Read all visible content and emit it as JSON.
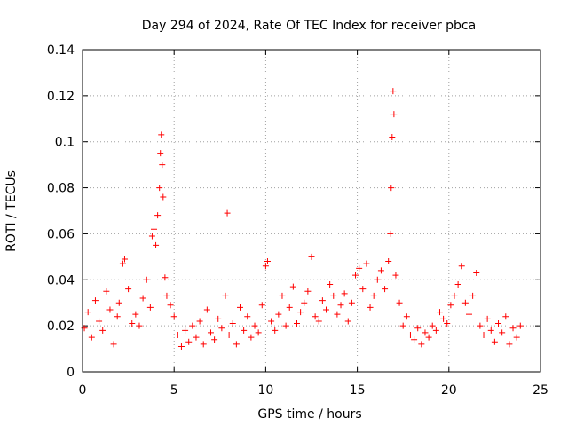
{
  "chart_data": {
    "type": "scatter",
    "title": "Day 294 of 2024, Rate Of TEC Index for receiver pbca",
    "xlabel": "GPS time / hours",
    "ylabel": "ROTI / TECUs",
    "xlim": [
      0,
      25
    ],
    "ylim": [
      0,
      0.14
    ],
    "x_ticks": [
      0,
      5,
      10,
      15,
      20,
      25
    ],
    "x_tick_labels": [
      "0",
      "5",
      "10",
      "15",
      "20",
      "25"
    ],
    "y_ticks": [
      0,
      0.02,
      0.04,
      0.06,
      0.08,
      0.1,
      0.12,
      0.14
    ],
    "y_tick_labels": [
      "0",
      "0.02",
      "0.04",
      "0.06",
      "0.08",
      "0.1",
      "0.12",
      "0.14"
    ],
    "grid": true,
    "marker": "+",
    "marker_color": "#ff0000",
    "series": [
      {
        "name": "ROTI",
        "points": [
          [
            0.1,
            0.019
          ],
          [
            0.3,
            0.026
          ],
          [
            0.5,
            0.015
          ],
          [
            0.7,
            0.031
          ],
          [
            0.9,
            0.022
          ],
          [
            1.1,
            0.018
          ],
          [
            1.3,
            0.035
          ],
          [
            1.5,
            0.027
          ],
          [
            1.7,
            0.012
          ],
          [
            1.9,
            0.024
          ],
          [
            2.0,
            0.03
          ],
          [
            2.2,
            0.047
          ],
          [
            2.3,
            0.049
          ],
          [
            2.5,
            0.036
          ],
          [
            2.7,
            0.021
          ],
          [
            2.9,
            0.025
          ],
          [
            3.1,
            0.02
          ],
          [
            3.3,
            0.032
          ],
          [
            3.5,
            0.04
          ],
          [
            3.7,
            0.028
          ],
          [
            3.8,
            0.059
          ],
          [
            3.9,
            0.062
          ],
          [
            4.0,
            0.055
          ],
          [
            4.1,
            0.068
          ],
          [
            4.2,
            0.08
          ],
          [
            4.25,
            0.095
          ],
          [
            4.3,
            0.103
          ],
          [
            4.35,
            0.09
          ],
          [
            4.4,
            0.076
          ],
          [
            4.5,
            0.041
          ],
          [
            4.6,
            0.033
          ],
          [
            4.8,
            0.029
          ],
          [
            5.0,
            0.024
          ],
          [
            5.2,
            0.016
          ],
          [
            5.4,
            0.011
          ],
          [
            5.6,
            0.018
          ],
          [
            5.8,
            0.013
          ],
          [
            6.0,
            0.02
          ],
          [
            6.2,
            0.015
          ],
          [
            6.4,
            0.022
          ],
          [
            6.6,
            0.012
          ],
          [
            6.8,
            0.027
          ],
          [
            7.0,
            0.017
          ],
          [
            7.2,
            0.014
          ],
          [
            7.4,
            0.023
          ],
          [
            7.6,
            0.019
          ],
          [
            7.8,
            0.033
          ],
          [
            7.9,
            0.069
          ],
          [
            8.0,
            0.016
          ],
          [
            8.2,
            0.021
          ],
          [
            8.4,
            0.012
          ],
          [
            8.6,
            0.028
          ],
          [
            8.8,
            0.018
          ],
          [
            9.0,
            0.024
          ],
          [
            9.2,
            0.015
          ],
          [
            9.4,
            0.02
          ],
          [
            9.6,
            0.017
          ],
          [
            9.8,
            0.029
          ],
          [
            10.0,
            0.046
          ],
          [
            10.1,
            0.048
          ],
          [
            10.3,
            0.022
          ],
          [
            10.5,
            0.018
          ],
          [
            10.7,
            0.025
          ],
          [
            10.9,
            0.033
          ],
          [
            11.1,
            0.02
          ],
          [
            11.3,
            0.028
          ],
          [
            11.5,
            0.037
          ],
          [
            11.7,
            0.021
          ],
          [
            11.9,
            0.026
          ],
          [
            12.1,
            0.03
          ],
          [
            12.3,
            0.035
          ],
          [
            12.5,
            0.05
          ],
          [
            12.7,
            0.024
          ],
          [
            12.9,
            0.022
          ],
          [
            13.1,
            0.031
          ],
          [
            13.3,
            0.027
          ],
          [
            13.5,
            0.038
          ],
          [
            13.7,
            0.033
          ],
          [
            13.9,
            0.025
          ],
          [
            14.1,
            0.029
          ],
          [
            14.3,
            0.034
          ],
          [
            14.5,
            0.022
          ],
          [
            14.7,
            0.03
          ],
          [
            14.9,
            0.042
          ],
          [
            15.1,
            0.045
          ],
          [
            15.3,
            0.036
          ],
          [
            15.5,
            0.047
          ],
          [
            15.7,
            0.028
          ],
          [
            15.9,
            0.033
          ],
          [
            16.1,
            0.04
          ],
          [
            16.3,
            0.044
          ],
          [
            16.5,
            0.036
          ],
          [
            16.7,
            0.048
          ],
          [
            16.8,
            0.06
          ],
          [
            16.85,
            0.08
          ],
          [
            16.9,
            0.102
          ],
          [
            16.95,
            0.122
          ],
          [
            17.0,
            0.112
          ],
          [
            17.1,
            0.042
          ],
          [
            17.3,
            0.03
          ],
          [
            17.5,
            0.02
          ],
          [
            17.7,
            0.024
          ],
          [
            17.9,
            0.016
          ],
          [
            18.1,
            0.014
          ],
          [
            18.3,
            0.019
          ],
          [
            18.5,
            0.012
          ],
          [
            18.7,
            0.017
          ],
          [
            18.9,
            0.015
          ],
          [
            19.1,
            0.02
          ],
          [
            19.3,
            0.018
          ],
          [
            19.5,
            0.026
          ],
          [
            19.7,
            0.023
          ],
          [
            19.9,
            0.021
          ],
          [
            20.1,
            0.029
          ],
          [
            20.3,
            0.033
          ],
          [
            20.5,
            0.038
          ],
          [
            20.7,
            0.046
          ],
          [
            20.9,
            0.03
          ],
          [
            21.1,
            0.025
          ],
          [
            21.3,
            0.033
          ],
          [
            21.5,
            0.043
          ],
          [
            21.7,
            0.02
          ],
          [
            21.9,
            0.016
          ],
          [
            22.1,
            0.023
          ],
          [
            22.3,
            0.018
          ],
          [
            22.5,
            0.013
          ],
          [
            22.7,
            0.021
          ],
          [
            22.9,
            0.017
          ],
          [
            23.1,
            0.024
          ],
          [
            23.3,
            0.012
          ],
          [
            23.5,
            0.019
          ],
          [
            23.7,
            0.015
          ],
          [
            23.9,
            0.02
          ]
        ]
      }
    ]
  }
}
